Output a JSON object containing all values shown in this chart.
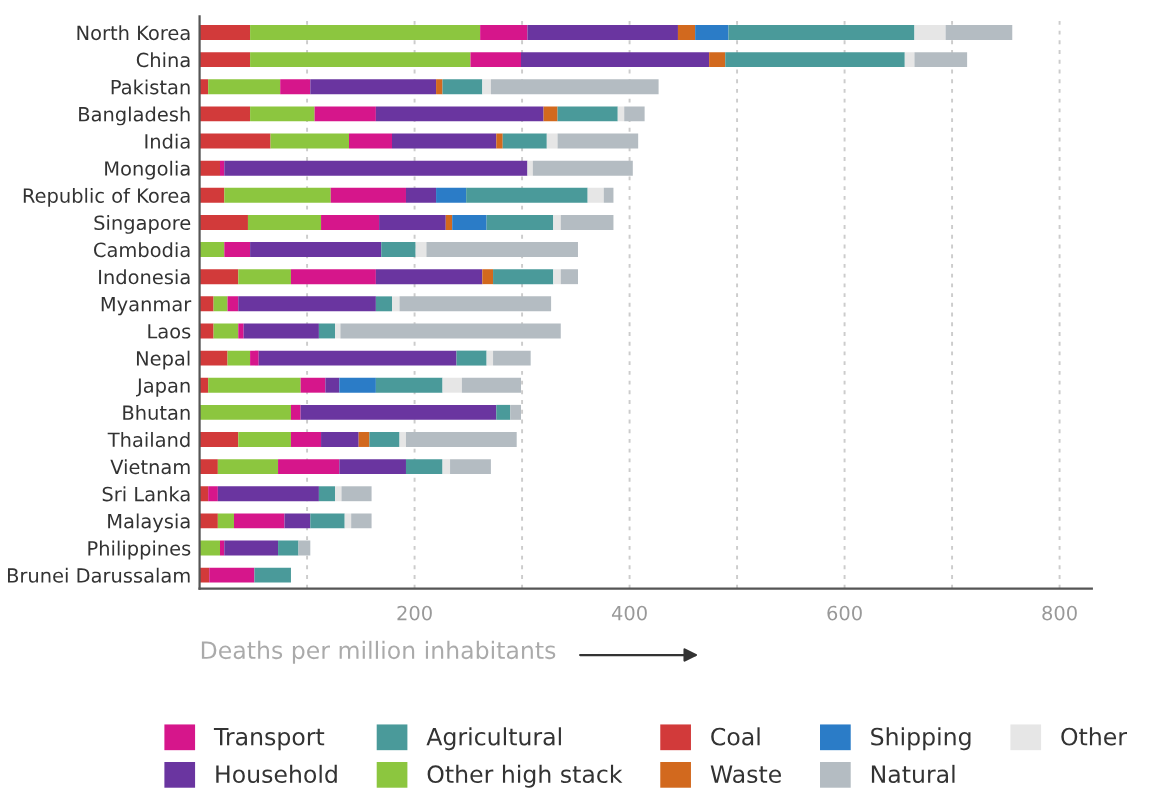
{
  "chart_data": {
    "type": "bar",
    "orientation": "horizontal",
    "stacked": true,
    "xlabel": "Deaths per million inhabitants",
    "categories": [
      "North Korea",
      "China",
      "Pakistan",
      "Bangladesh",
      "India",
      "Mongolia",
      "Republic of Korea",
      "Singapore",
      "Cambodia",
      "Indonesia",
      "Myanmar",
      "Laos",
      "Nepal",
      "Japan",
      "Bhutan",
      "Thailand",
      "Vietnam",
      "Sri Lanka",
      "Malaysia",
      "Philippines",
      "Brunei Darussalam"
    ],
    "series": [
      {
        "name": "Coal",
        "color": "#d23a3a",
        "values": [
          47,
          47,
          8,
          47,
          66,
          19,
          23,
          45,
          0,
          36,
          13,
          13,
          26,
          8,
          0,
          36,
          17,
          8,
          17,
          0,
          9
        ]
      },
      {
        "name": "Other high stack",
        "color": "#8cc63f",
        "values": [
          214,
          205,
          67,
          60,
          73,
          0,
          99,
          68,
          23,
          49,
          13,
          23,
          21,
          86,
          85,
          49,
          56,
          0,
          15,
          19,
          0
        ]
      },
      {
        "name": "Transport",
        "color": "#d6168b",
        "values": [
          44,
          47,
          28,
          57,
          40,
          4,
          70,
          54,
          24,
          79,
          10,
          5,
          8,
          23,
          9,
          28,
          57,
          9,
          47,
          4,
          42
        ]
      },
      {
        "name": "Household",
        "color": "#6a35a0",
        "values": [
          140,
          175,
          117,
          156,
          97,
          282,
          28,
          62,
          122,
          99,
          128,
          70,
          184,
          13,
          182,
          35,
          62,
          94,
          24,
          50,
          0
        ]
      },
      {
        "name": "Waste",
        "color": "#d2691e",
        "values": [
          16,
          15,
          6,
          13,
          6,
          0,
          0,
          6,
          0,
          10,
          0,
          0,
          0,
          0,
          0,
          10,
          0,
          0,
          0,
          0,
          0
        ]
      },
      {
        "name": "Shipping",
        "color": "#2b7cc7",
        "values": [
          31,
          0,
          0,
          0,
          0,
          0,
          28,
          32,
          0,
          0,
          0,
          0,
          0,
          34,
          0,
          0,
          0,
          0,
          0,
          0,
          0
        ]
      },
      {
        "name": "Agricultural",
        "color": "#4a9a9a",
        "values": [
          173,
          167,
          37,
          56,
          41,
          0,
          113,
          62,
          32,
          56,
          15,
          15,
          28,
          62,
          13,
          28,
          34,
          15,
          32,
          19,
          34
        ]
      },
      {
        "name": "Other",
        "color": "#e6e6e6",
        "values": [
          29,
          9,
          8,
          6,
          10,
          5,
          15,
          7,
          10,
          7,
          7,
          5,
          6,
          18,
          null,
          6,
          7,
          6,
          6,
          0,
          0
        ]
      },
      {
        "name": "Natural",
        "color": "#b4bcc2",
        "values": [
          62,
          49,
          156,
          19,
          75,
          93,
          9,
          49,
          141,
          16,
          141,
          205,
          35,
          55,
          10,
          103,
          38,
          28,
          19,
          11,
          0
        ]
      }
    ],
    "xlim": [
      0,
      830
    ],
    "xticks": [
      {
        "value": 100,
        "label": null
      },
      200,
      {
        "value": 300,
        "label": null
      },
      400,
      {
        "value": 500,
        "label": null
      },
      600,
      {
        "value": 700,
        "label": null
      },
      800
    ],
    "grid": "x",
    "legend": "bottom"
  }
}
